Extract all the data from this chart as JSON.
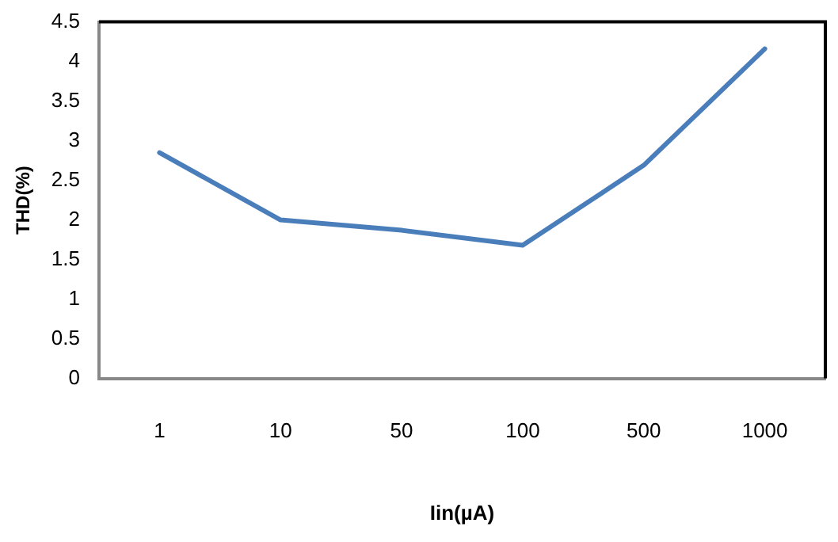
{
  "chart_data": {
    "type": "line",
    "xlabel": "Iin(µA)",
    "ylabel": "THD(%)",
    "categories": [
      "1",
      "10",
      "50",
      "100",
      "500",
      "1000"
    ],
    "series": [
      {
        "color": "#4a7ebb",
        "values": [
          2.85,
          2.0,
          1.87,
          1.68,
          2.69,
          4.16
        ]
      }
    ],
    "ylim": [
      0,
      4.5
    ],
    "yticks": [
      0,
      0.5,
      1,
      1.5,
      2,
      2.5,
      3,
      3.5,
      4,
      4.5
    ],
    "grid": false,
    "legend": false,
    "marker": "none",
    "line_style": "solid"
  }
}
